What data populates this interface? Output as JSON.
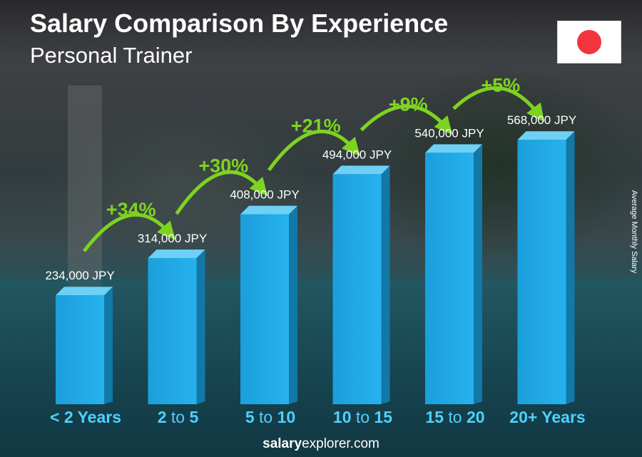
{
  "title": "Salary Comparison By Experience",
  "subtitle": "Personal Trainer",
  "y_axis_label": "Average Monthly Salary",
  "footer": {
    "brand_bold": "salary",
    "brand_rest": "explorer.com"
  },
  "flag_icon": "japan-flag-icon",
  "colors": {
    "bar_front": "#1fa8e6",
    "bar_side": "#1278a8",
    "bar_top": "#6dd0f5",
    "accent_green": "#7ed321",
    "label_cyan": "#4fd0ff"
  },
  "chart_data": {
    "type": "bar",
    "categories": [
      "< 2 Years",
      "2 to 5",
      "5 to 10",
      "10 to 15",
      "15 to 20",
      "20+ Years"
    ],
    "category_parts": [
      [
        "< 2 Years"
      ],
      [
        "2",
        " to ",
        "5"
      ],
      [
        "5",
        " to ",
        "10"
      ],
      [
        "10",
        " to ",
        "15"
      ],
      [
        "15",
        " to ",
        "20"
      ],
      [
        "20+ Years"
      ]
    ],
    "values": [
      234000,
      314000,
      408000,
      494000,
      540000,
      568000
    ],
    "value_labels": [
      "234,000 JPY",
      "314,000 JPY",
      "408,000 JPY",
      "494,000 JPY",
      "540,000 JPY",
      "568,000 JPY"
    ],
    "increases": [
      "+34%",
      "+30%",
      "+21%",
      "+9%",
      "+5%"
    ],
    "unit": "JPY",
    "ylabel": "Average Monthly Salary"
  }
}
